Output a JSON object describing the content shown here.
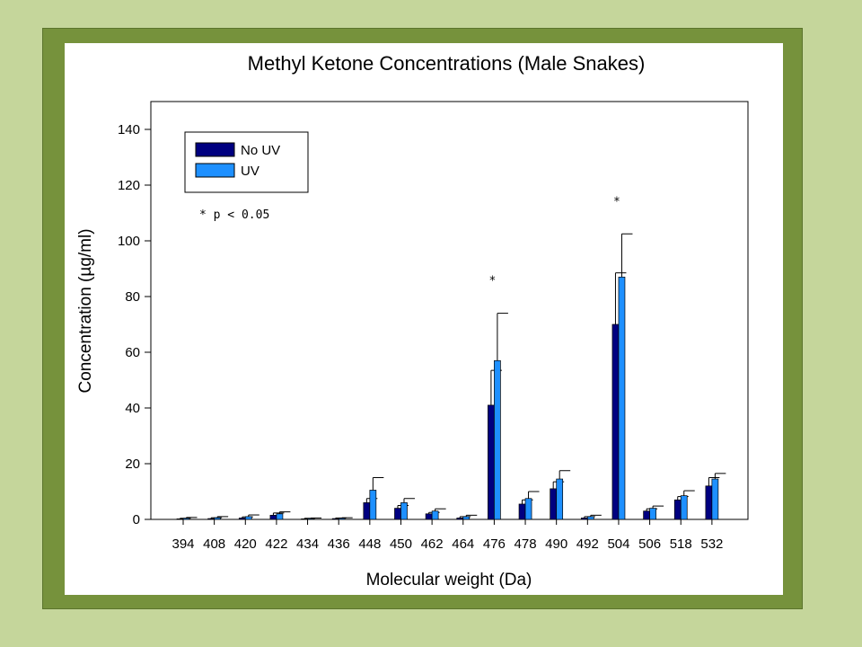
{
  "colors": {
    "page_bg": "#c5d69b",
    "frame": "#76923c",
    "panel": "#ffffff",
    "no_uv": "#000080",
    "uv": "#1e90ff"
  },
  "chart_data": {
    "type": "bar",
    "title": "Methyl Ketone Concentrations (Male Snakes)",
    "xlabel": "Molecular weight (Da)",
    "ylabel": "Concentration (µg/ml)",
    "ylim": [
      0,
      150
    ],
    "yticks": [
      0,
      20,
      40,
      60,
      80,
      100,
      120,
      140
    ],
    "grid": false,
    "legend_position": "top-left",
    "annotation": "* p < 0.05",
    "significance_marker": "*",
    "significant_categories": [
      "476",
      "504"
    ],
    "categories": [
      "394",
      "408",
      "420",
      "422",
      "434",
      "436",
      "448",
      "450",
      "462",
      "464",
      "476",
      "478",
      "490",
      "492",
      "504",
      "506",
      "518",
      "532"
    ],
    "series": [
      {
        "name": "No UV",
        "color": "#000080",
        "values": [
          0.2,
          0.3,
          0.5,
          1.5,
          0.2,
          0.3,
          6,
          4,
          2,
          0.5,
          41,
          5.5,
          11,
          0.5,
          70,
          3,
          7,
          12
        ],
        "errors": [
          0.2,
          0.3,
          0.4,
          0.8,
          0.2,
          0.2,
          1.5,
          1,
          0.5,
          0.5,
          12.5,
          1.5,
          2.5,
          0.5,
          18.5,
          0.8,
          1.2,
          3
        ]
      },
      {
        "name": "UV",
        "color": "#1e90ff",
        "values": [
          0.4,
          0.6,
          1,
          2,
          0.3,
          0.4,
          10.5,
          6,
          3,
          1,
          57,
          7.5,
          14.5,
          1,
          87,
          4,
          8.5,
          14.5
        ],
        "errors": [
          0.3,
          0.4,
          0.6,
          0.7,
          0.2,
          0.2,
          4.5,
          1.5,
          0.8,
          0.5,
          17,
          2.5,
          3,
          0.5,
          15.5,
          0.8,
          1.8,
          2
        ]
      }
    ]
  }
}
